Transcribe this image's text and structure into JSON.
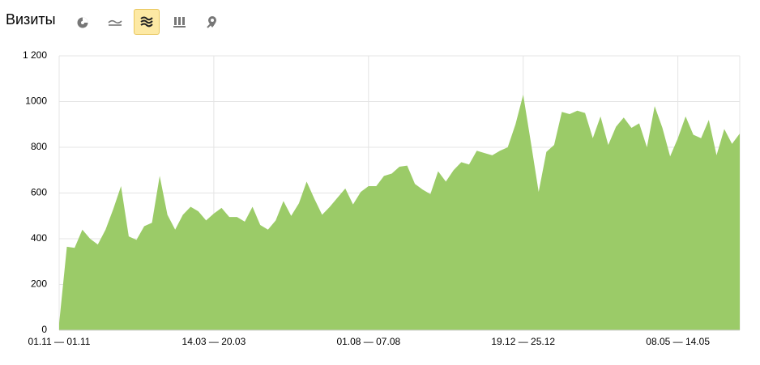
{
  "header": {
    "title": "Визиты"
  },
  "chart_data": {
    "type": "area",
    "categories": [
      "01.11 — 01.11",
      null,
      null,
      null,
      null,
      null,
      null,
      null,
      null,
      null,
      null,
      null,
      null,
      null,
      null,
      null,
      null,
      null,
      null,
      null,
      "14.03 — 20.03",
      null,
      null,
      null,
      null,
      null,
      null,
      null,
      null,
      null,
      null,
      null,
      null,
      null,
      null,
      null,
      null,
      null,
      null,
      null,
      "01.08 — 07.08",
      null,
      null,
      null,
      null,
      null,
      null,
      null,
      null,
      null,
      null,
      null,
      null,
      null,
      null,
      null,
      null,
      null,
      null,
      null,
      "19.12 — 25.12",
      null,
      null,
      null,
      null,
      null,
      null,
      null,
      null,
      null,
      null,
      null,
      null,
      null,
      null,
      null,
      null,
      null,
      null,
      null,
      "08.05 — 14.05",
      null,
      null,
      null,
      null,
      null,
      null,
      null,
      null
    ],
    "values": [
      30,
      365,
      360,
      440,
      400,
      375,
      440,
      530,
      630,
      410,
      395,
      455,
      470,
      675,
      505,
      440,
      505,
      540,
      520,
      480,
      510,
      535,
      495,
      495,
      475,
      540,
      460,
      440,
      480,
      565,
      500,
      555,
      650,
      575,
      505,
      540,
      580,
      620,
      550,
      605,
      630,
      630,
      675,
      685,
      715,
      720,
      640,
      615,
      595,
      695,
      650,
      700,
      735,
      725,
      785,
      775,
      765,
      785,
      800,
      900,
      1030,
      820,
      605,
      780,
      810,
      955,
      945,
      960,
      950,
      840,
      935,
      810,
      890,
      930,
      885,
      905,
      800,
      980,
      885,
      760,
      840,
      935,
      855,
      840,
      920,
      765,
      880,
      815,
      860
    ],
    "color": "#9bcb68",
    "ylim": [
      0,
      1200
    ],
    "yticks": [
      0,
      200,
      400,
      600,
      800,
      1000,
      {
        "value": 1200,
        "label": "1 200"
      }
    ],
    "grid": true
  }
}
